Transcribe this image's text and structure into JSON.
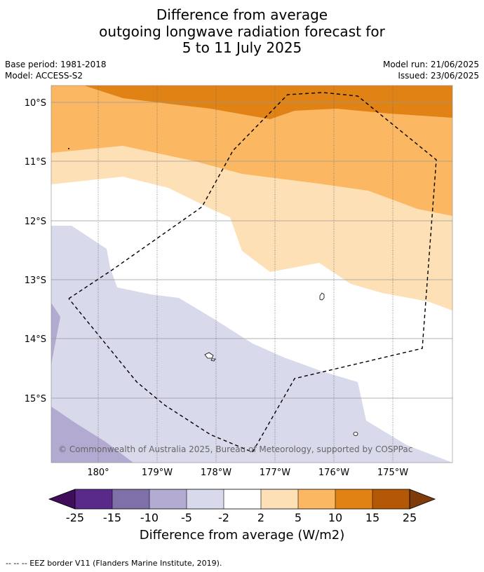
{
  "title": {
    "line1": "Difference from average",
    "line2": "outgoing longwave radiation forecast for",
    "line3": "5 to 11 July 2025"
  },
  "meta": {
    "base_period": "Base period: 1981-2018",
    "model": "Model: ACCESS-S2",
    "model_run": "Model run: 21/06/2025",
    "issued": "Issued: 23/06/2025"
  },
  "map": {
    "lat_labels": [
      "10°S",
      "11°S",
      "12°S",
      "13°S",
      "14°S",
      "15°S"
    ],
    "lon_labels": [
      "180°",
      "179°W",
      "178°W",
      "177°W",
      "176°W",
      "175°W"
    ],
    "copyright": "© Commonwealth of Australia 2025, Bureau of Meteorology, supported by COSPPac",
    "boundary_style": "dashed EEZ border",
    "grid": true
  },
  "colorbar": {
    "title": "Difference from average (W/m2)",
    "labels": [
      "-25",
      "-15",
      "-10",
      "-5",
      "-2",
      "2",
      "5",
      "10",
      "15",
      "25"
    ],
    "colors": {
      "below_-25": "#3f0d5a",
      "-25_to_-15": "#5a2a8a",
      "-15_to_-10": "#7f70aa",
      "-10_to_-5": "#b2aad1",
      "-5_to_-2": "#d8d9ea",
      "-2_to_2": "#ffffff",
      "2_to_5": "#fde0b5",
      "5_to_10": "#fbb762",
      "10_to_15": "#e08214",
      "15_to_25": "#b35806",
      "above_25": "#7f3b08"
    }
  },
  "footnote": "-- -- -- EEZ border V11 (Flanders Marine Institute, 2019)."
}
